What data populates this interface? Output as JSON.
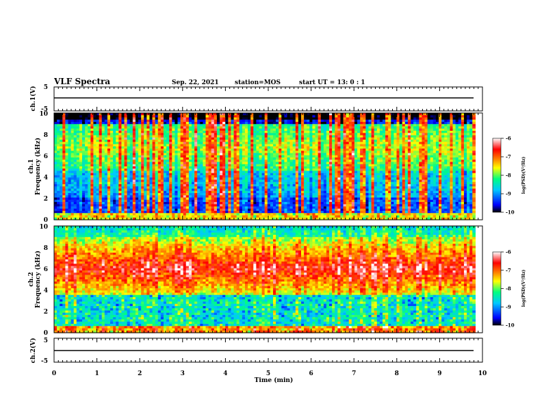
{
  "header": {
    "title": "VLF Spectra",
    "date": "Sep. 22, 2021",
    "station": "station=MOS",
    "start_ut": "start UT =  13: 0  : 1"
  },
  "chart_data": {
    "type": "heatmap",
    "xlabel": "Time (min)",
    "xlim": [
      0,
      10
    ],
    "x_ticks": [
      "0",
      "1",
      "2",
      "3",
      "4",
      "5",
      "6",
      "7",
      "8",
      "9",
      "10"
    ],
    "data_end_min": 9.83,
    "panels": [
      {
        "kind": "voltage",
        "ylabel": "ch.1(V)",
        "ylim": [
          -5,
          5
        ],
        "y_ticks": [
          "5",
          "-5"
        ],
        "trace_level": 0
      },
      {
        "kind": "spectrogram",
        "ylabel": "ch.1\nFrequency (kHz)",
        "ylabel_line1": "ch.1",
        "ylabel_line2": "Frequency (kHz)",
        "ylim": [
          0,
          10
        ],
        "y_ticks": [
          "0",
          "2",
          "4",
          "6",
          "8",
          "10"
        ],
        "description_levels": {
          "background_log_psd": -9.6,
          "band_kHz": [
            4.5,
            9.0
          ],
          "band_log_psd": -7.8,
          "impulse_count": 130
        }
      },
      {
        "kind": "spectrogram",
        "ylabel": "ch.2\nFrequency (kHz)",
        "ylabel_line1": "ch.2",
        "ylabel_line2": "Frequency (kHz)",
        "ylim": [
          0,
          10
        ],
        "y_ticks": [
          "0",
          "2",
          "4",
          "6",
          "8",
          "10"
        ],
        "description_levels": {
          "band_center_kHz": 6.0,
          "band_log_psd": -6.6
        }
      },
      {
        "kind": "voltage",
        "ylabel": "ch.2(V)",
        "ylim": [
          -5,
          5
        ],
        "y_ticks": [
          "5",
          "-5"
        ],
        "trace_level": 0
      }
    ],
    "colorbar": {
      "label": "log(PSD)(V²/Hz)",
      "range": [
        -10,
        -6
      ],
      "ticks": [
        "-6",
        "-7",
        "-8",
        "-9",
        "-10"
      ],
      "colors": [
        "#000000",
        "#0000ff",
        "#00c8ff",
        "#00ff80",
        "#ffff00",
        "#ff8000",
        "#ff0000",
        "#ffffff"
      ]
    }
  }
}
